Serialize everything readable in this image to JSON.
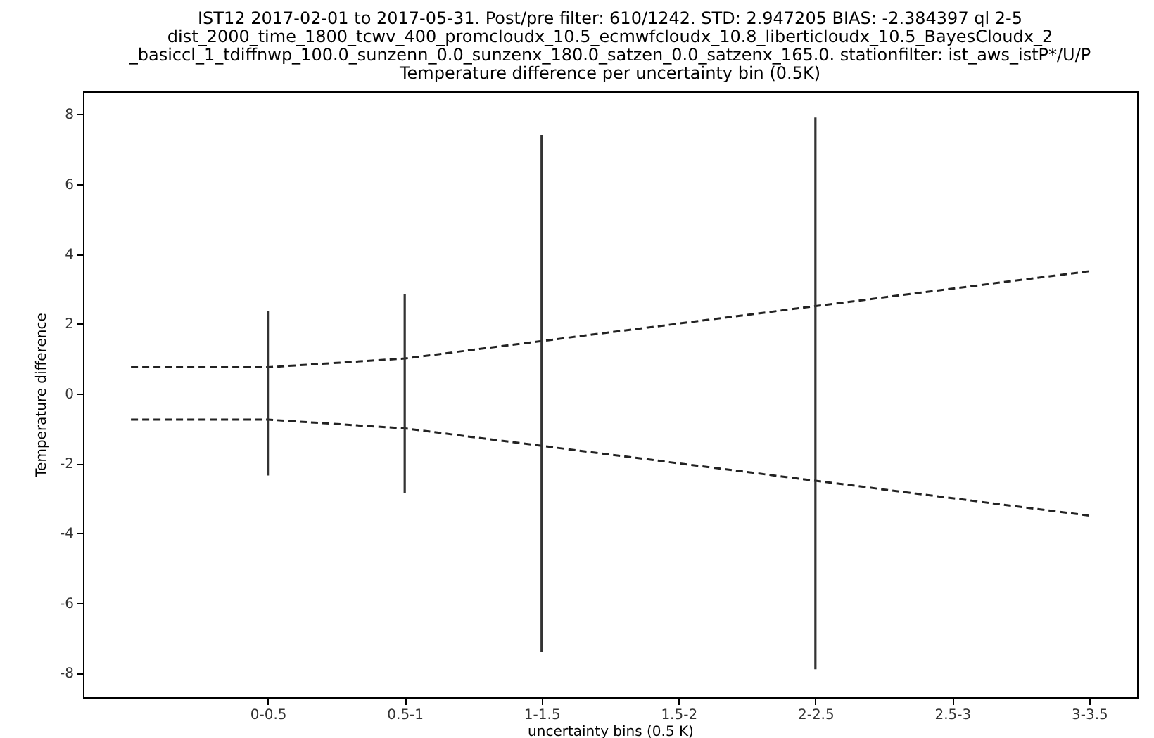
{
  "chart_data": {
    "type": "line",
    "title": "IST12 2017-02-01 to 2017-05-31. Post/pre filter: 610/1242. STD: 2.947205 BIAS: -2.384397 ql 2-5\ndist_2000_time_1800_tcwv_400_promcloudx_10.5_ecmwfcloudx_10.8_liberticloudx_10.5_BayesCloudx_2\n_basiccl_1_tdiffnwp_100.0_sunzenn_0.0_sunzenx_180.0_satzen_0.0_satzenx_165.0. stationfilter: ist_aws_istP*/U/P\nTemperature difference per uncertainty bin (0.5K)",
    "xlabel": "uncertainty bins (0.5 K)",
    "ylabel": "Temperature difference",
    "categories": [
      null,
      "0-0.5",
      "0.5-1",
      "1-1.5",
      "1.5-2",
      "2-2.5",
      "2.5-3",
      "3-3.5"
    ],
    "ylim": [
      -8.7,
      8.65
    ],
    "yticks": [
      -8,
      -6,
      -4,
      -2,
      0,
      2,
      4,
      6,
      8
    ],
    "series": [
      {
        "color": "#222222",
        "line_style": "dashed",
        "marker": "none",
        "values": [
          0.75,
          0.75,
          1.0,
          1.5,
          2.0,
          2.5,
          3.0,
          3.5
        ]
      },
      {
        "color": "#222222",
        "line_style": "dashed",
        "marker": "none",
        "values": [
          -0.75,
          -0.75,
          -1.0,
          -1.5,
          -2.0,
          -2.5,
          -3.0,
          -3.5
        ]
      },
      {
        "type": "bar",
        "color": "#333333",
        "x": [
          "0-0.5",
          "0.5-1",
          "1-1.5",
          "2-2.5"
        ],
        "base": [
          -2.35,
          -2.85,
          -7.4,
          -7.9
        ],
        "values": [
          4.7,
          5.7,
          14.8,
          15.8
        ]
      }
    ]
  }
}
